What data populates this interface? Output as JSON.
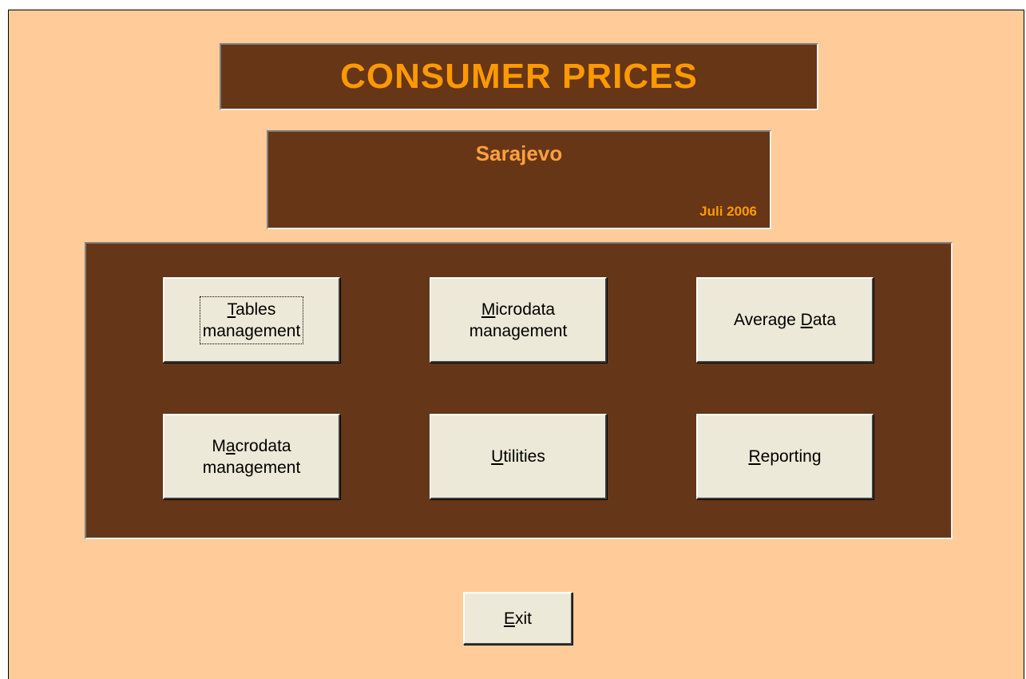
{
  "header": {
    "title": "CONSUMER PRICES",
    "city": "Sarajevo",
    "period": "Juli 2006"
  },
  "menu": {
    "buttons": [
      {
        "lines": [
          {
            "key": "T",
            "after": "ables"
          },
          {
            "before": "management"
          }
        ]
      },
      {
        "lines": [
          {
            "key": "M",
            "after": "icrodata"
          },
          {
            "before": "management"
          }
        ]
      },
      {
        "lines": [
          {
            "before": "Average ",
            "key": "D",
            "after": "ata"
          }
        ]
      },
      {
        "lines": [
          {
            "before": "M",
            "key": "a",
            "after": "crodata"
          },
          {
            "before": "management"
          }
        ]
      },
      {
        "lines": [
          {
            "key": "U",
            "after": "tilities"
          }
        ]
      },
      {
        "lines": [
          {
            "key": "R",
            "after": "eporting"
          }
        ]
      }
    ]
  },
  "exit": {
    "lines": [
      {
        "key": "E",
        "after": "xit"
      }
    ]
  }
}
